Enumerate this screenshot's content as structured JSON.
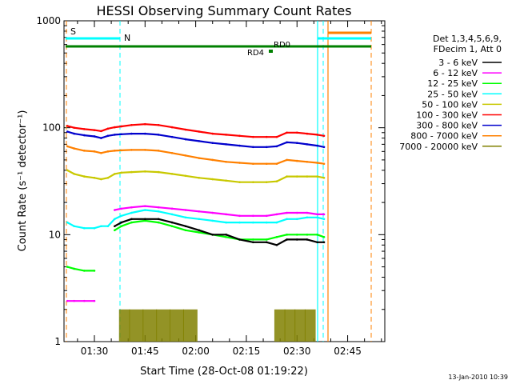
{
  "chart_data": {
    "type": "line",
    "title": "HESSI Observing Summary Count Rates",
    "xlabel": "Start Time (28-Oct-08 01:19:22)",
    "ylabel": "Count Rate (s⁻¹ detector⁻¹)",
    "yscale": "log",
    "ylim": [
      1,
      1000
    ],
    "xlim": [
      "01:21:00",
      "02:56:00"
    ],
    "x_ticks": [
      "01:30",
      "01:45",
      "02:00",
      "02:15",
      "02:30",
      "02:45"
    ],
    "y_ticks": [
      "1",
      "10",
      "100",
      "1000"
    ],
    "grid": false,
    "legend_position": "right",
    "legend_header": [
      "Det 1,3,4,5,6,9,",
      "FDecim 1, Att 0"
    ],
    "footer": "13-Jan-2010 10:39",
    "x": [
      "01:22",
      "01:24",
      "01:27",
      "01:30",
      "01:32",
      "01:34",
      "01:36",
      "01:38",
      "01:41",
      "01:45",
      "01:49",
      "01:53",
      "01:57",
      "02:01",
      "02:05",
      "02:09",
      "02:13",
      "02:17",
      "02:21",
      "02:24",
      "02:27",
      "02:30",
      "02:33",
      "02:36",
      "02:38"
    ],
    "series": [
      {
        "name": "3 - 6 keV",
        "color": "#000000",
        "values": [
          null,
          null,
          null,
          null,
          null,
          null,
          12,
          13,
          14,
          14,
          14,
          13,
          12,
          11,
          10,
          10,
          9,
          8.5,
          8.5,
          8,
          9,
          9,
          9,
          8.5,
          8.5
        ]
      },
      {
        "name": "6 - 12 keV",
        "color": "#ff00ff",
        "values": [
          2.4,
          2.4,
          2.4,
          2.4,
          null,
          null,
          17,
          17.5,
          18,
          18.5,
          18,
          17.5,
          17,
          16.5,
          16,
          15.5,
          15,
          15,
          15,
          15.5,
          16,
          16,
          16,
          15.5,
          15.5
        ]
      },
      {
        "name": "12 - 25 keV",
        "color": "#00ff00",
        "values": [
          5,
          4.8,
          4.6,
          4.6,
          null,
          null,
          11,
          12,
          13,
          13.5,
          13,
          12,
          11,
          10.5,
          10,
          9.5,
          9,
          9,
          9,
          9.5,
          10,
          10,
          10,
          10,
          9.5
        ]
      },
      {
        "name": "25 - 50 keV",
        "color": "#00ffff",
        "values": [
          13,
          12,
          11.5,
          11.5,
          12,
          12,
          14,
          15,
          16,
          17,
          16.5,
          15.5,
          14.5,
          14,
          13.5,
          13,
          13,
          13,
          13,
          13,
          14,
          14,
          14.5,
          14.5,
          14
        ]
      },
      {
        "name": "50 - 100 keV",
        "color": "#c8c800",
        "values": [
          40,
          37,
          35,
          34,
          33,
          34,
          37,
          38,
          38.5,
          39,
          38.5,
          37,
          35.5,
          34,
          33,
          32,
          31,
          31,
          31,
          31.5,
          35,
          35,
          35,
          35,
          34
        ]
      },
      {
        "name": "100 - 300 keV",
        "color": "#ff0000",
        "values": [
          104,
          100,
          97,
          95,
          93,
          98,
          101,
          103,
          106,
          108,
          106,
          101,
          96,
          92,
          88,
          86,
          84,
          82,
          82,
          82,
          90,
          90,
          88,
          86,
          84
        ]
      },
      {
        "name": "300 - 800 keV",
        "color": "#0000cc",
        "values": [
          92,
          88,
          85,
          83,
          80,
          84,
          86,
          87,
          88,
          88,
          86,
          82,
          78,
          75,
          72,
          70,
          68,
          66,
          66,
          67,
          73,
          72,
          70,
          68,
          66
        ]
      },
      {
        "name": "800 - 7000 keV",
        "color": "#ff8000",
        "values": [
          67,
          64,
          61,
          60,
          58,
          60,
          61,
          61.5,
          62,
          62,
          61,
          58,
          55,
          52,
          50,
          48,
          47,
          46,
          46,
          46,
          50,
          49,
          48,
          47,
          46
        ]
      },
      {
        "name": "7000 - 20000 keV",
        "color": "#808000",
        "values": [
          null,
          null,
          null,
          null,
          null,
          null,
          null,
          1.5,
          1.5,
          1.5,
          1.5,
          1.5,
          1.5,
          null,
          null,
          null,
          null,
          null,
          null,
          1.5,
          1.5,
          1.5,
          1.5,
          null,
          null
        ]
      }
    ],
    "annotations": [
      {
        "text": "S",
        "color": "#ff8000"
      },
      {
        "text": "N",
        "color": "#00ffff"
      },
      {
        "text": "RD0",
        "color": "#008000"
      },
      {
        "text": "RD4",
        "color": "#008000"
      }
    ]
  }
}
